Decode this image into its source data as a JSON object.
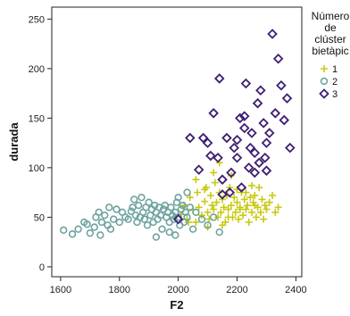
{
  "chart_data": {
    "type": "scatter",
    "xlabel": "F2",
    "ylabel": "durada",
    "xlim": [
      1570,
      2420
    ],
    "ylim": [
      -10,
      262
    ],
    "x_ticks": [
      1600,
      1800,
      2000,
      2200,
      2400
    ],
    "y_ticks": [
      0,
      50,
      100,
      150,
      200,
      250
    ],
    "x_tick_labels": [
      "1600",
      "1800",
      "2000",
      "2200",
      "2400"
    ],
    "y_tick_labels": [
      "0",
      "50",
      "100",
      "150",
      "200",
      "250"
    ],
    "grid": false,
    "legend": {
      "title_lines": [
        "Número",
        "de",
        "clúster",
        "bietàpic"
      ],
      "placement": "right"
    },
    "series": [
      {
        "name": "1",
        "marker": "plus",
        "color": "#c9c914",
        "points": [
          [
            2010,
            53
          ],
          [
            2020,
            62
          ],
          [
            2030,
            48
          ],
          [
            2040,
            70
          ],
          [
            2050,
            58
          ],
          [
            2060,
            45
          ],
          [
            2065,
            75
          ],
          [
            2070,
            60
          ],
          [
            2080,
            52
          ],
          [
            2090,
            66
          ],
          [
            2095,
            80
          ],
          [
            2100,
            55
          ],
          [
            2105,
            48
          ],
          [
            2110,
            72
          ],
          [
            2115,
            62
          ],
          [
            2120,
            58
          ],
          [
            2125,
            85
          ],
          [
            2130,
            65
          ],
          [
            2135,
            50
          ],
          [
            2140,
            75
          ],
          [
            2145,
            55
          ],
          [
            2150,
            68
          ],
          [
            2155,
            60
          ],
          [
            2160,
            45
          ],
          [
            2165,
            72
          ],
          [
            2170,
            58
          ],
          [
            2175,
            80
          ],
          [
            2180,
            62
          ],
          [
            2185,
            50
          ],
          [
            2190,
            70
          ],
          [
            2195,
            55
          ],
          [
            2200,
            65
          ],
          [
            2205,
            48
          ],
          [
            2210,
            60
          ],
          [
            2215,
            75
          ],
          [
            2220,
            52
          ],
          [
            2225,
            68
          ],
          [
            2230,
            58
          ],
          [
            2235,
            62
          ],
          [
            2240,
            45
          ],
          [
            2245,
            70
          ],
          [
            2250,
            55
          ],
          [
            2255,
            65
          ],
          [
            2260,
            72
          ],
          [
            2265,
            50
          ],
          [
            2270,
            60
          ],
          [
            2275,
            80
          ],
          [
            2280,
            55
          ],
          [
            2285,
            68
          ],
          [
            2290,
            48
          ],
          [
            2295,
            62
          ],
          [
            2300,
            58
          ],
          [
            2310,
            65
          ],
          [
            2320,
            72
          ],
          [
            2330,
            55
          ],
          [
            2340,
            60
          ],
          [
            2120,
            95
          ],
          [
            2140,
            105
          ],
          [
            2180,
            92
          ],
          [
            2090,
            78
          ],
          [
            2060,
            88
          ],
          [
            2170,
            50
          ],
          [
            2230,
            75
          ],
          [
            2150,
            42
          ],
          [
            2200,
            78
          ],
          [
            2260,
            62
          ],
          [
            2250,
            82
          ],
          [
            2100,
            40
          ],
          [
            2210,
            58
          ],
          [
            2035,
            45
          ]
        ]
      },
      {
        "name": "2",
        "marker": "circle",
        "color": "#6fa3a0",
        "points": [
          [
            1610,
            37
          ],
          [
            1640,
            33
          ],
          [
            1660,
            38
          ],
          [
            1680,
            45
          ],
          [
            1690,
            43
          ],
          [
            1700,
            34
          ],
          [
            1715,
            40
          ],
          [
            1720,
            50
          ],
          [
            1730,
            55
          ],
          [
            1740,
            45
          ],
          [
            1750,
            52
          ],
          [
            1760,
            42
          ],
          [
            1770,
            38
          ],
          [
            1780,
            48
          ],
          [
            1790,
            58
          ],
          [
            1800,
            45
          ],
          [
            1810,
            55
          ],
          [
            1820,
            50
          ],
          [
            1830,
            48
          ],
          [
            1840,
            56
          ],
          [
            1845,
            60
          ],
          [
            1850,
            68
          ],
          [
            1855,
            52
          ],
          [
            1860,
            45
          ],
          [
            1865,
            62
          ],
          [
            1870,
            50
          ],
          [
            1875,
            70
          ],
          [
            1880,
            55
          ],
          [
            1885,
            48
          ],
          [
            1890,
            60
          ],
          [
            1895,
            42
          ],
          [
            1900,
            65
          ],
          [
            1905,
            52
          ],
          [
            1910,
            58
          ],
          [
            1915,
            45
          ],
          [
            1920,
            62
          ],
          [
            1925,
            55
          ],
          [
            1930,
            48
          ],
          [
            1935,
            60
          ],
          [
            1940,
            52
          ],
          [
            1945,
            38
          ],
          [
            1950,
            58
          ],
          [
            1955,
            62
          ],
          [
            1960,
            50
          ],
          [
            1965,
            55
          ],
          [
            1970,
            45
          ],
          [
            1975,
            60
          ],
          [
            1980,
            52
          ],
          [
            1985,
            48
          ],
          [
            1990,
            55
          ],
          [
            1995,
            65
          ],
          [
            2000,
            50
          ],
          [
            2005,
            42
          ],
          [
            2010,
            58
          ],
          [
            2015,
            62
          ],
          [
            2020,
            45
          ],
          [
            2025,
            55
          ],
          [
            2030,
            50
          ],
          [
            2040,
            60
          ],
          [
            2050,
            38
          ],
          [
            2060,
            55
          ],
          [
            2080,
            48
          ],
          [
            2100,
            42
          ],
          [
            2120,
            50
          ],
          [
            2140,
            35
          ],
          [
            1970,
            35
          ],
          [
            1925,
            30
          ],
          [
            1990,
            32
          ],
          [
            2000,
            70
          ],
          [
            2030,
            75
          ],
          [
            1735,
            32
          ],
          [
            1765,
            60
          ]
        ]
      },
      {
        "name": "3",
        "marker": "diamond",
        "color": "#3e1f73",
        "points": [
          [
            2000,
            48
          ],
          [
            2040,
            130
          ],
          [
            2070,
            98
          ],
          [
            2085,
            130
          ],
          [
            2100,
            125
          ],
          [
            2110,
            112
          ],
          [
            2120,
            155
          ],
          [
            2135,
            110
          ],
          [
            2140,
            190
          ],
          [
            2150,
            88
          ],
          [
            2165,
            130
          ],
          [
            2175,
            75
          ],
          [
            2180,
            95
          ],
          [
            2190,
            120
          ],
          [
            2200,
            110
          ],
          [
            2210,
            150
          ],
          [
            2215,
            80
          ],
          [
            2225,
            140
          ],
          [
            2230,
            185
          ],
          [
            2240,
            100
          ],
          [
            2245,
            120
          ],
          [
            2250,
            135
          ],
          [
            2260,
            115
          ],
          [
            2270,
            165
          ],
          [
            2275,
            105
          ],
          [
            2280,
            178
          ],
          [
            2290,
            145
          ],
          [
            2295,
            110
          ],
          [
            2300,
            125
          ],
          [
            2310,
            135
          ],
          [
            2320,
            235
          ],
          [
            2330,
            155
          ],
          [
            2340,
            210
          ],
          [
            2350,
            183
          ],
          [
            2360,
            148
          ],
          [
            2370,
            170
          ],
          [
            2380,
            120
          ],
          [
            2150,
            73
          ],
          [
            2200,
            128
          ],
          [
            2260,
            95
          ],
          [
            2300,
            97
          ],
          [
            2225,
            152
          ]
        ]
      }
    ]
  }
}
